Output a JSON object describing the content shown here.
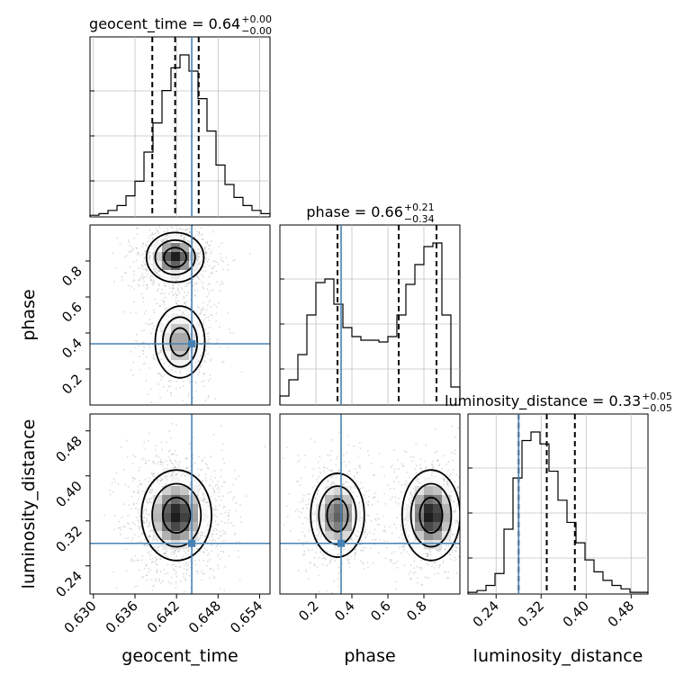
{
  "chart_data": {
    "type": "corner",
    "parameters": [
      {
        "name": "geocent_time",
        "label": "geocent_time",
        "title_prefix": "geocent_time = ",
        "median": "0.64",
        "err_plus": "+0.00",
        "err_minus": "−0.00",
        "range": [
          0.6295,
          0.6555
        ],
        "ticks": [
          "0.630",
          "0.636",
          "0.642",
          "0.648",
          "0.654"
        ],
        "tick_values": [
          0.63,
          0.636,
          0.642,
          0.648,
          0.654
        ],
        "quantiles": [
          0.6385,
          0.6418,
          0.6452
        ],
        "truth": 0.6442,
        "hist": [
          1,
          2,
          4,
          7,
          13,
          22,
          40,
          58,
          78,
          92,
          100,
          90,
          73,
          53,
          32,
          20,
          12,
          7,
          4,
          2
        ]
      },
      {
        "name": "phase",
        "label": "phase",
        "title_prefix": "phase = ",
        "median": "0.66",
        "err_plus": "+0.21",
        "err_minus": "−0.34",
        "range": [
          0.0,
          1.0
        ],
        "ticks": [
          "0.2",
          "0.4",
          "0.6",
          "0.8"
        ],
        "tick_values": [
          0.2,
          0.4,
          0.6,
          0.8
        ],
        "quantiles": [
          0.32,
          0.66,
          0.87
        ],
        "truth": 0.34,
        "hist": [
          5,
          14,
          28,
          50,
          68,
          70,
          56,
          43,
          38,
          36,
          36,
          35,
          38,
          50,
          67,
          78,
          88,
          90,
          50,
          10
        ]
      },
      {
        "name": "luminosity_distance",
        "label": "luminosity_distance",
        "title_prefix": "luminosity_distance = ",
        "median": "0.33",
        "err_plus": "+0.05",
        "err_minus": "−0.05",
        "range": [
          0.19,
          0.51
        ],
        "ticks": [
          "0.24",
          "0.32",
          "0.40",
          "0.48"
        ],
        "tick_values": [
          0.24,
          0.32,
          0.4,
          0.48
        ],
        "quantiles": [
          0.28,
          0.33,
          0.38
        ],
        "truth": 0.28,
        "hist": [
          1,
          2,
          5,
          12,
          38,
          68,
          90,
          95,
          88,
          72,
          55,
          42,
          30,
          20,
          13,
          8,
          5,
          3,
          1,
          1
        ]
      }
    ],
    "pairs": [
      {
        "x": "geocent_time",
        "y": "phase",
        "modes": [
          {
            "x": 0.6418,
            "y": 0.82,
            "sx": 0.0018,
            "sy": 0.06,
            "w": 1.0
          },
          {
            "x": 0.6425,
            "y": 0.35,
            "sx": 0.0018,
            "sy": 0.1,
            "w": 0.55
          }
        ]
      },
      {
        "x": "geocent_time",
        "y": "luminosity_distance",
        "modes": [
          {
            "x": 0.642,
            "y": 0.33,
            "sx": 0.0022,
            "sy": 0.035,
            "w": 1.0
          }
        ]
      },
      {
        "x": "phase",
        "y": "luminosity_distance",
        "modes": [
          {
            "x": 0.32,
            "y": 0.33,
            "sx": 0.07,
            "sy": 0.035,
            "w": 0.75
          },
          {
            "x": 0.84,
            "y": 0.33,
            "sx": 0.07,
            "sy": 0.035,
            "w": 1.0
          }
        ]
      }
    ],
    "truth_color": "#4682b4",
    "hist_color": "#000000",
    "grid": true
  }
}
